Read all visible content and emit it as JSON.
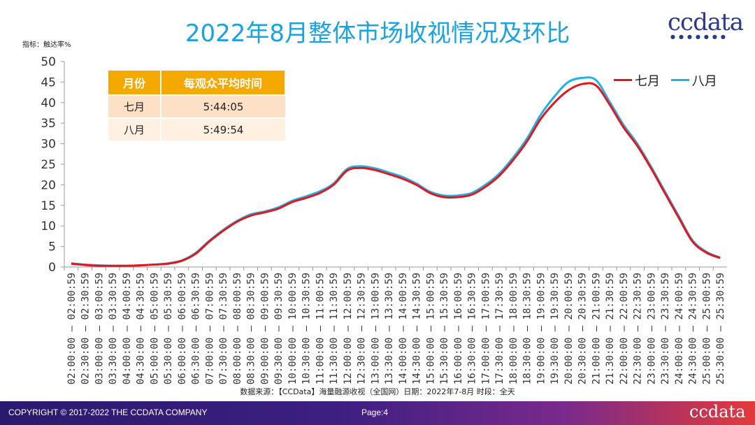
{
  "title": "2022年8月整体市场收视情况及环比",
  "logo_text": "ccdata",
  "y_unit_label": "指标：触达率%",
  "table": {
    "headers": [
      "月份",
      "每观众平均时间"
    ],
    "rows": [
      [
        "七月",
        "5:44:05"
      ],
      [
        "八月",
        "5:49:54"
      ]
    ]
  },
  "source_text": "数据来源：【CCData】海量融源收视（全国网）日期：2022年7-8月 时段：全天",
  "footer": {
    "copyright": "COPYRIGHT © 2017-2022 THE CCDATA COMPANY",
    "page": "Page:4",
    "logo": "ccdata"
  },
  "colors": {
    "title": "#1aa3e0",
    "july": "#e8141c",
    "august": "#1fb1ea",
    "table_header": "#f5a800"
  },
  "chart_data": {
    "type": "line",
    "ylabel": "触达率%",
    "ylim": [
      0,
      50
    ],
    "yticks": [
      0,
      5,
      10,
      15,
      20,
      25,
      30,
      35,
      40,
      45,
      50
    ],
    "legend_position": "top-right",
    "categories": [
      "02:00:00 – 02:00:59",
      "02:30:00 – 02:30:59",
      "03:00:00 – 03:00:59",
      "03:30:00 – 03:30:59",
      "04:00:00 – 04:00:59",
      "04:30:00 – 04:30:59",
      "05:00:00 – 05:00:59",
      "05:30:00 – 05:30:59",
      "06:00:00 – 06:00:59",
      "06:30:00 – 06:30:59",
      "07:00:00 – 07:00:59",
      "07:30:00 – 07:30:59",
      "08:00:00 – 08:00:59",
      "08:30:00 – 08:30:59",
      "09:00:00 – 09:00:59",
      "09:30:00 – 09:30:59",
      "10:00:00 – 10:00:59",
      "10:30:00 – 10:30:59",
      "11:00:00 – 11:00:59",
      "11:30:00 – 11:30:59",
      "12:00:00 – 12:00:59",
      "12:30:00 – 12:30:59",
      "13:00:00 – 13:00:59",
      "13:30:00 – 13:30:59",
      "14:00:00 – 14:00:59",
      "14:30:00 – 14:30:59",
      "15:00:00 – 15:00:59",
      "15:30:00 – 15:30:59",
      "16:00:00 – 16:00:59",
      "16:30:00 – 16:30:59",
      "17:00:00 – 17:00:59",
      "17:30:00 – 17:30:59",
      "18:00:00 – 18:00:59",
      "18:30:00 – 18:30:59",
      "19:00:00 – 19:00:59",
      "19:30:00 – 19:30:59",
      "20:00:00 – 20:00:59",
      "20:30:00 – 20:30:59",
      "21:00:00 – 21:00:59",
      "21:30:00 – 21:30:59",
      "22:00:00 – 22:00:59",
      "22:30:00 – 22:30:59",
      "23:00:00 – 23:00:59",
      "23:30:00 – 23:30:59",
      "24:00:00 – 24:00:59",
      "24:30:00 – 24:30:59",
      "25:00:00 – 25:00:59",
      "25:30:00 – 25:30:59"
    ],
    "series": [
      {
        "name": "七月",
        "values": [
          0.8,
          0.5,
          0.3,
          0.3,
          0.3,
          0.4,
          0.6,
          0.8,
          1.5,
          3.2,
          6.2,
          8.8,
          11.0,
          12.5,
          13.3,
          14.2,
          15.8,
          16.8,
          18.0,
          20.0,
          23.5,
          24.1,
          23.6,
          22.6,
          21.5,
          20.0,
          18.0,
          17.0,
          17.0,
          17.6,
          19.5,
          22.2,
          26.0,
          30.5,
          36.0,
          40.0,
          43.0,
          44.5,
          44.2,
          39.5,
          34.0,
          29.5,
          24.0,
          18.0,
          12.0,
          6.2,
          3.5,
          2.2
        ]
      },
      {
        "name": "八月",
        "values": [
          0.9,
          0.6,
          0.4,
          0.3,
          0.3,
          0.4,
          0.6,
          0.9,
          1.6,
          3.4,
          6.4,
          9.0,
          11.2,
          12.8,
          13.5,
          14.5,
          16.1,
          17.2,
          18.4,
          20.3,
          23.9,
          24.5,
          24.0,
          23.0,
          21.9,
          20.3,
          18.3,
          17.4,
          17.4,
          18.0,
          20.0,
          22.7,
          26.6,
          31.2,
          37.0,
          41.5,
          45.0,
          46.0,
          45.5,
          40.2,
          34.6,
          30.0,
          24.4,
          18.4,
          12.4,
          6.5,
          3.7,
          2.3
        ]
      }
    ]
  }
}
